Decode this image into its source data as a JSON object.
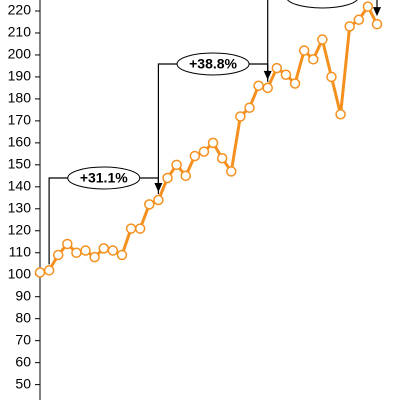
{
  "chart_data": {
    "type": "line",
    "categories": [
      null,
      null,
      null,
      null,
      null,
      null,
      null,
      null,
      null,
      null,
      null,
      null,
      null,
      null,
      null,
      null,
      null,
      null,
      null,
      null,
      null,
      null,
      null,
      null,
      null,
      null,
      null,
      null,
      null,
      null,
      null,
      null,
      null,
      null,
      null,
      null,
      null,
      null
    ],
    "values": [
      101,
      102,
      109,
      114,
      110,
      111,
      108,
      112,
      111,
      109,
      121,
      121,
      132,
      134,
      144,
      150,
      145,
      154,
      156,
      160,
      153,
      147,
      172,
      176,
      186,
      185,
      194,
      191,
      187,
      202,
      198,
      207,
      190,
      173,
      213,
      216,
      222,
      214
    ],
    "color": "#f5901e",
    "ylim": [
      43,
      225
    ],
    "yticks": [
      50,
      60,
      70,
      80,
      90,
      100,
      110,
      120,
      130,
      140,
      150,
      160,
      170,
      180,
      190,
      200,
      210,
      220
    ],
    "annotations": [
      {
        "text": "+31.1%"
      },
      {
        "text": "+38.8%"
      }
    ]
  }
}
